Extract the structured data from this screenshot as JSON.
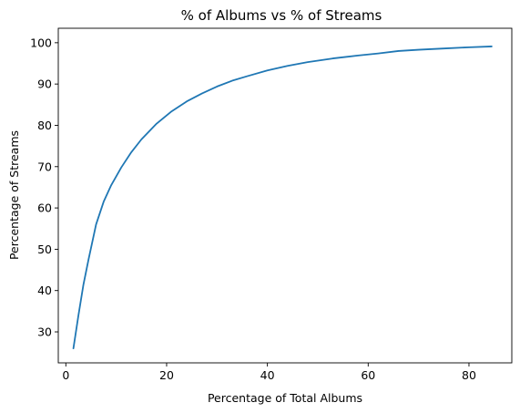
{
  "chart_data": {
    "type": "line",
    "title": "% of Albums vs % of Streams",
    "xlabel": "Percentage of Total Albums",
    "ylabel": "Percentage of Streams",
    "xlim": [
      -1.5,
      88.5
    ],
    "ylim": [
      22.5,
      103.5
    ],
    "xticks": [
      0,
      20,
      40,
      60,
      80
    ],
    "yticks": [
      30,
      40,
      50,
      60,
      70,
      80,
      90,
      100
    ],
    "grid": false,
    "legend": "none",
    "colors": {
      "line": "#1f77b4",
      "axes": "#000000"
    },
    "series": [
      {
        "x": [
          1.5,
          2.5,
          3.5,
          4.5,
          6,
          7.5,
          9,
          11,
          13,
          15,
          18,
          21,
          24,
          27,
          30,
          33,
          36,
          40,
          44,
          48,
          53,
          58,
          62,
          66,
          70,
          75,
          80,
          84.5
        ],
        "y": [
          26,
          34,
          41.5,
          47.5,
          56,
          61.5,
          65.5,
          69.8,
          73.5,
          76.6,
          80.4,
          83.4,
          85.8,
          87.7,
          89.4,
          90.8,
          91.9,
          93.3,
          94.4,
          95.3,
          96.2,
          96.9,
          97.4,
          98.0,
          98.3,
          98.6,
          98.9,
          99.1
        ]
      }
    ]
  }
}
